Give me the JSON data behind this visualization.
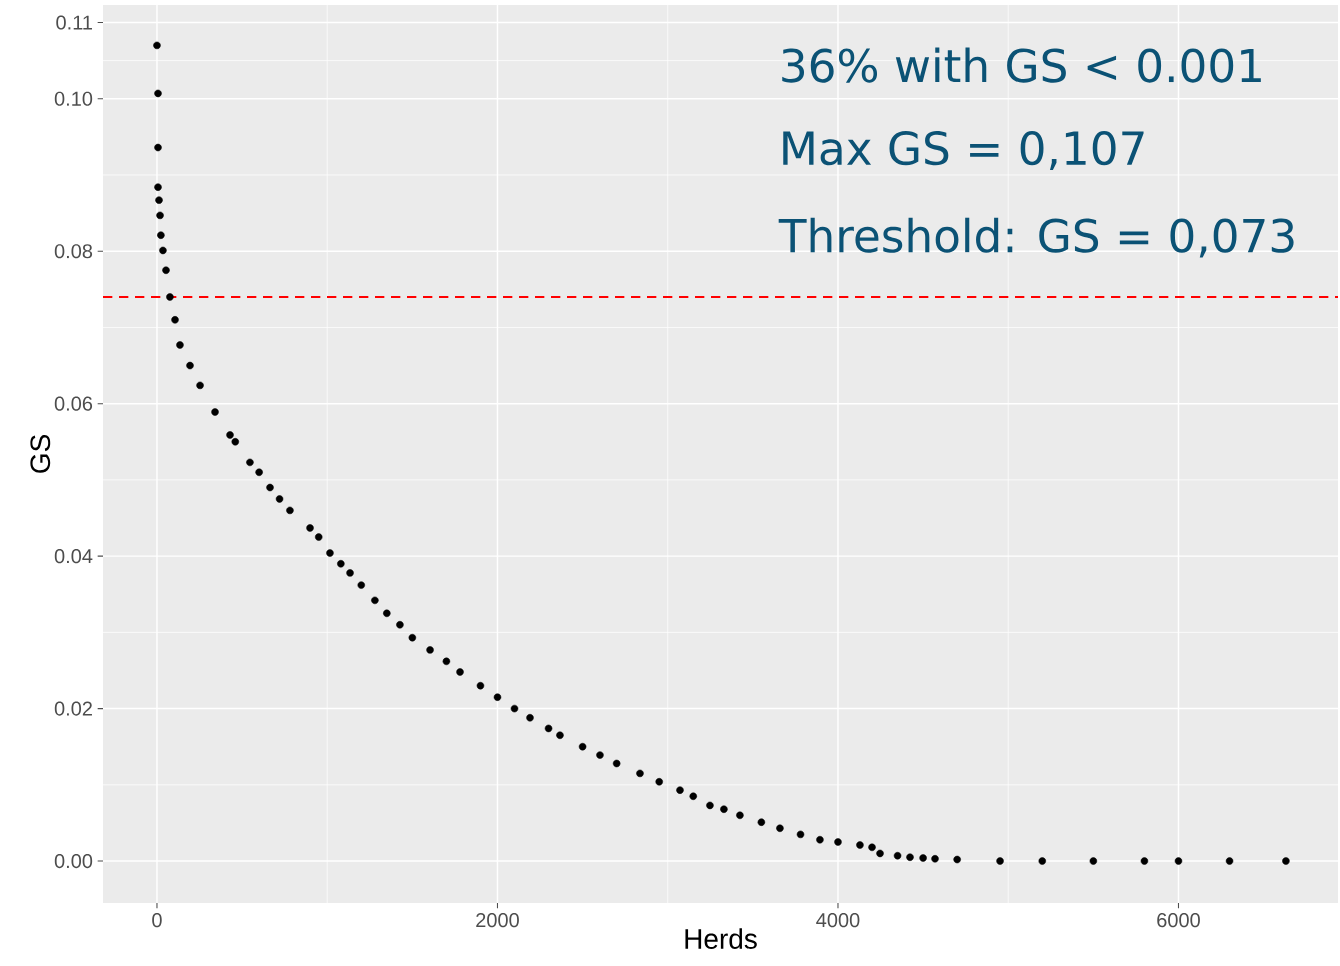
{
  "chart_data": {
    "type": "scatter",
    "xlabel": "Herds",
    "ylabel": "GS",
    "annotations": [
      "36% with GS < 0.001",
      "Max GS = 0,107",
      "Threshold: GS = 0,073"
    ],
    "xlim": [
      -317,
      6937
    ],
    "ylim": [
      -0.0055,
      0.1123
    ],
    "xticks": [
      0,
      2000,
      4000,
      6000
    ],
    "yticks": [
      {
        "value": 0,
        "label": "0.00"
      },
      0.02,
      0.04,
      0.06,
      0.08,
      {
        "value": 0.1,
        "label": "0.10"
      },
      0.11
    ],
    "grid": true,
    "marker": "circle",
    "ref_lines": [
      {
        "axis": "y",
        "value": 0.074,
        "color": "#ff0000",
        "line_style": "dashed"
      }
    ],
    "series": [
      {
        "color": "#000000",
        "x": [
          0,
          6,
          6,
          6,
          12,
          18,
          23,
          35,
          53,
          76,
          106,
          135,
          194,
          253,
          341,
          429,
          460,
          546,
          600,
          664,
          720,
          781,
          899,
          950,
          1016,
          1080,
          1134,
          1200,
          1280,
          1350,
          1427,
          1500,
          1604,
          1700,
          1780,
          1900,
          2000,
          2100,
          2191,
          2300,
          2367,
          2500,
          2602,
          2700,
          2837,
          2950,
          3072,
          3150,
          3248,
          3330,
          3424,
          3550,
          3659,
          3780,
          3894,
          4000,
          4129,
          4200,
          4247,
          4350,
          4423,
          4500,
          4570,
          4700,
          4952,
          5200,
          5500,
          5800,
          6000,
          6300,
          6631
        ],
        "values": [
          0.107,
          0.1007,
          0.0936,
          0.0884,
          0.0867,
          0.0847,
          0.0821,
          0.0801,
          0.0775,
          0.074,
          0.071,
          0.0677,
          0.065,
          0.0624,
          0.0589,
          0.0559,
          0.055,
          0.0523,
          0.051,
          0.049,
          0.0475,
          0.046,
          0.0437,
          0.0425,
          0.0404,
          0.039,
          0.0378,
          0.0362,
          0.0342,
          0.0325,
          0.031,
          0.0293,
          0.0277,
          0.0262,
          0.0248,
          0.023,
          0.0215,
          0.02,
          0.0188,
          0.0174,
          0.0165,
          0.015,
          0.0139,
          0.0128,
          0.0115,
          0.0104,
          0.0093,
          0.0085,
          0.0073,
          0.0068,
          0.006,
          0.0051,
          0.0043,
          0.0035,
          0.0028,
          0.0025,
          0.0021,
          0.0018,
          0.001,
          0.0007,
          0.0005,
          0.0004,
          0.0003,
          0.0002,
          0,
          0,
          0,
          0,
          0,
          0,
          0
        ]
      }
    ]
  }
}
